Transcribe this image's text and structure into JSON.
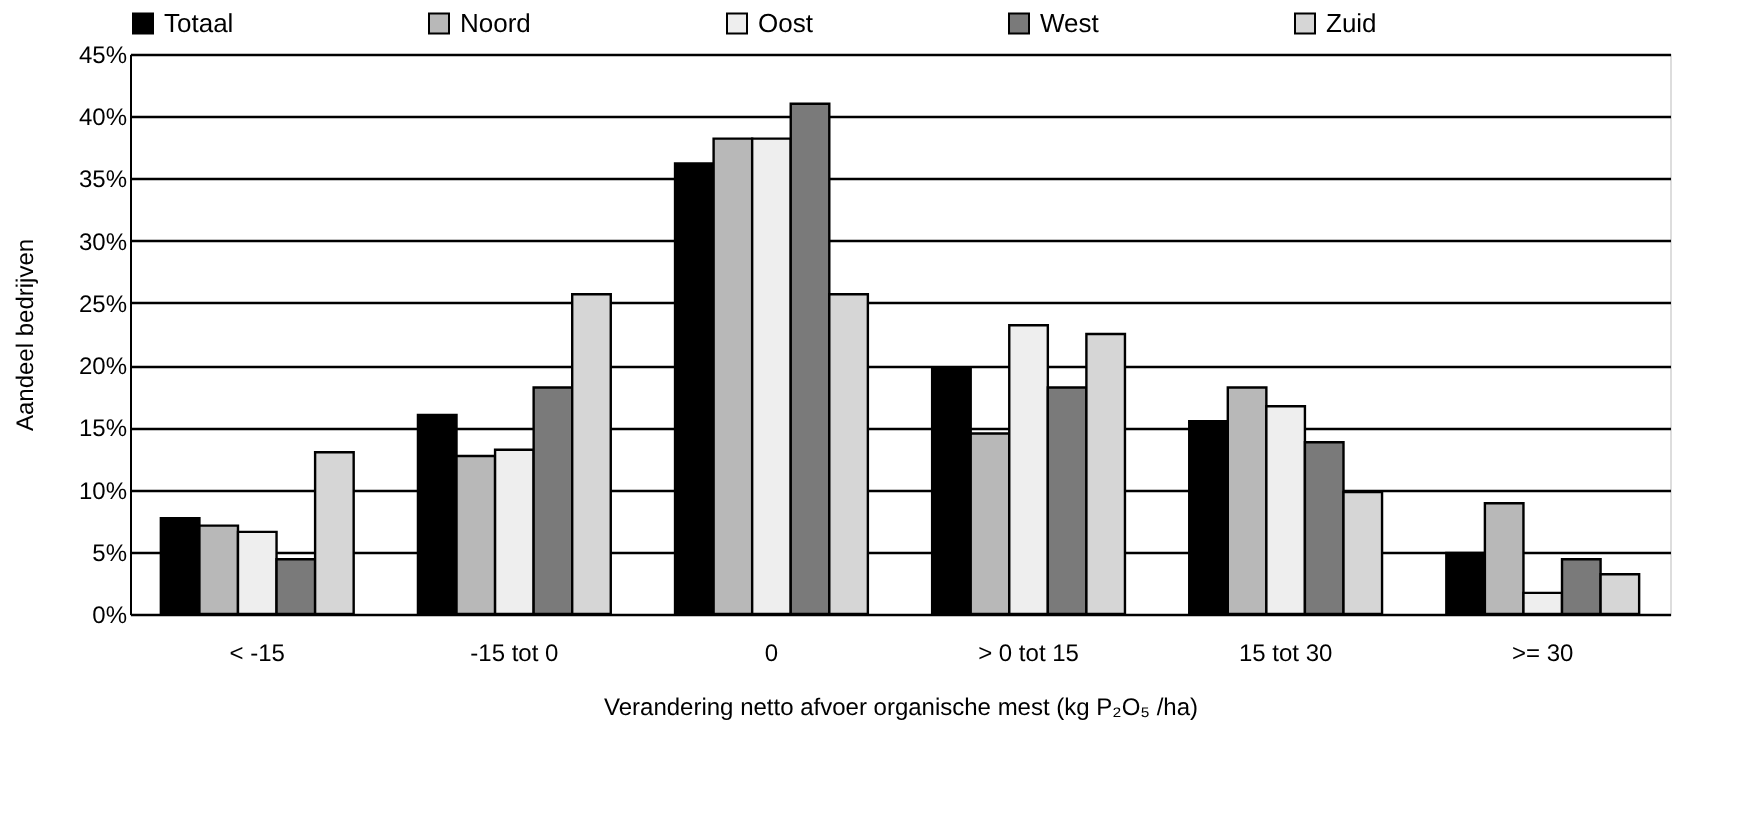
{
  "chart_data": {
    "type": "bar",
    "xlabel": "Verandering netto afvoer organische mest (kg P₂O₅ /ha)",
    "ylabel": "Aandeel bedrijven",
    "categories": [
      "< -15",
      "-15 tot 0",
      "0",
      "> 0 tot 15",
      "15 tot 30",
      ">= 30"
    ],
    "series": [
      {
        "name": "Totaal",
        "color": "#000000",
        "values": [
          7.7,
          16.0,
          36.2,
          19.7,
          15.5,
          4.9
        ]
      },
      {
        "name": "Noord",
        "color": "#b8b8b8",
        "values": [
          7.1,
          12.7,
          38.2,
          14.5,
          18.2,
          8.9
        ]
      },
      {
        "name": "Oost",
        "color": "#eeeeee",
        "values": [
          6.6,
          13.2,
          38.2,
          23.2,
          16.7,
          1.7
        ]
      },
      {
        "name": "West",
        "color": "#7a7a7a",
        "values": [
          4.4,
          18.2,
          41.0,
          18.2,
          13.8,
          4.4
        ]
      },
      {
        "name": "Zuid",
        "color": "#d6d6d6",
        "values": [
          13.0,
          25.7,
          25.7,
          22.5,
          9.8,
          3.2
        ]
      }
    ],
    "ylim": [
      0,
      45
    ],
    "yticks": [
      {
        "value": 0,
        "label": "0%"
      },
      {
        "value": 5,
        "label": "5%"
      },
      {
        "value": 10,
        "label": "10%"
      },
      {
        "value": 15,
        "label": "15%"
      },
      {
        "value": 20,
        "label": "20%"
      },
      {
        "value": 25,
        "label": "25%"
      },
      {
        "value": 30,
        "label": "30%"
      },
      {
        "value": 35,
        "label": "35%"
      },
      {
        "value": 40,
        "label": "40%"
      },
      {
        "value": 45,
        "label": "45%"
      }
    ],
    "grid": "y",
    "legend": "top"
  }
}
